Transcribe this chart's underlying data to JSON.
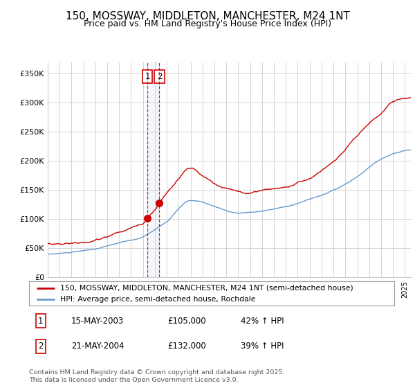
{
  "title": "150, MOSSWAY, MIDDLETON, MANCHESTER, M24 1NT",
  "subtitle": "Price paid vs. HM Land Registry's House Price Index (HPI)",
  "ylabel_ticks": [
    "£0",
    "£50K",
    "£100K",
    "£150K",
    "£200K",
    "£250K",
    "£300K",
    "£350K"
  ],
  "ytick_values": [
    0,
    50000,
    100000,
    150000,
    200000,
    250000,
    300000,
    350000
  ],
  "ylim": [
    0,
    370000
  ],
  "xlim_start": 1995.0,
  "xlim_end": 2025.5,
  "sale1_date": 2003.37,
  "sale1_price": 105000,
  "sale1_label": "1",
  "sale2_date": 2004.38,
  "sale2_price": 132000,
  "sale2_label": "2",
  "legend_line1": "150, MOSSWAY, MIDDLETON, MANCHESTER, M24 1NT (semi-detached house)",
  "legend_line2": "HPI: Average price, semi-detached house, Rochdale",
  "table_row1": [
    "1",
    "15-MAY-2003",
    "£105,000",
    "42% ↑ HPI"
  ],
  "table_row2": [
    "2",
    "21-MAY-2004",
    "£132,000",
    "39% ↑ HPI"
  ],
  "footnote": "Contains HM Land Registry data © Crown copyright and database right 2025.\nThis data is licensed under the Open Government Licence v3.0.",
  "line_color_red": "#cc0000",
  "line_color_blue": "#6699cc",
  "background_color": "#ffffff",
  "grid_color": "#cccccc",
  "dashed_line_color": "#cc0000",
  "title_fontsize": 11,
  "subtitle_fontsize": 9,
  "tick_fontsize": 8
}
